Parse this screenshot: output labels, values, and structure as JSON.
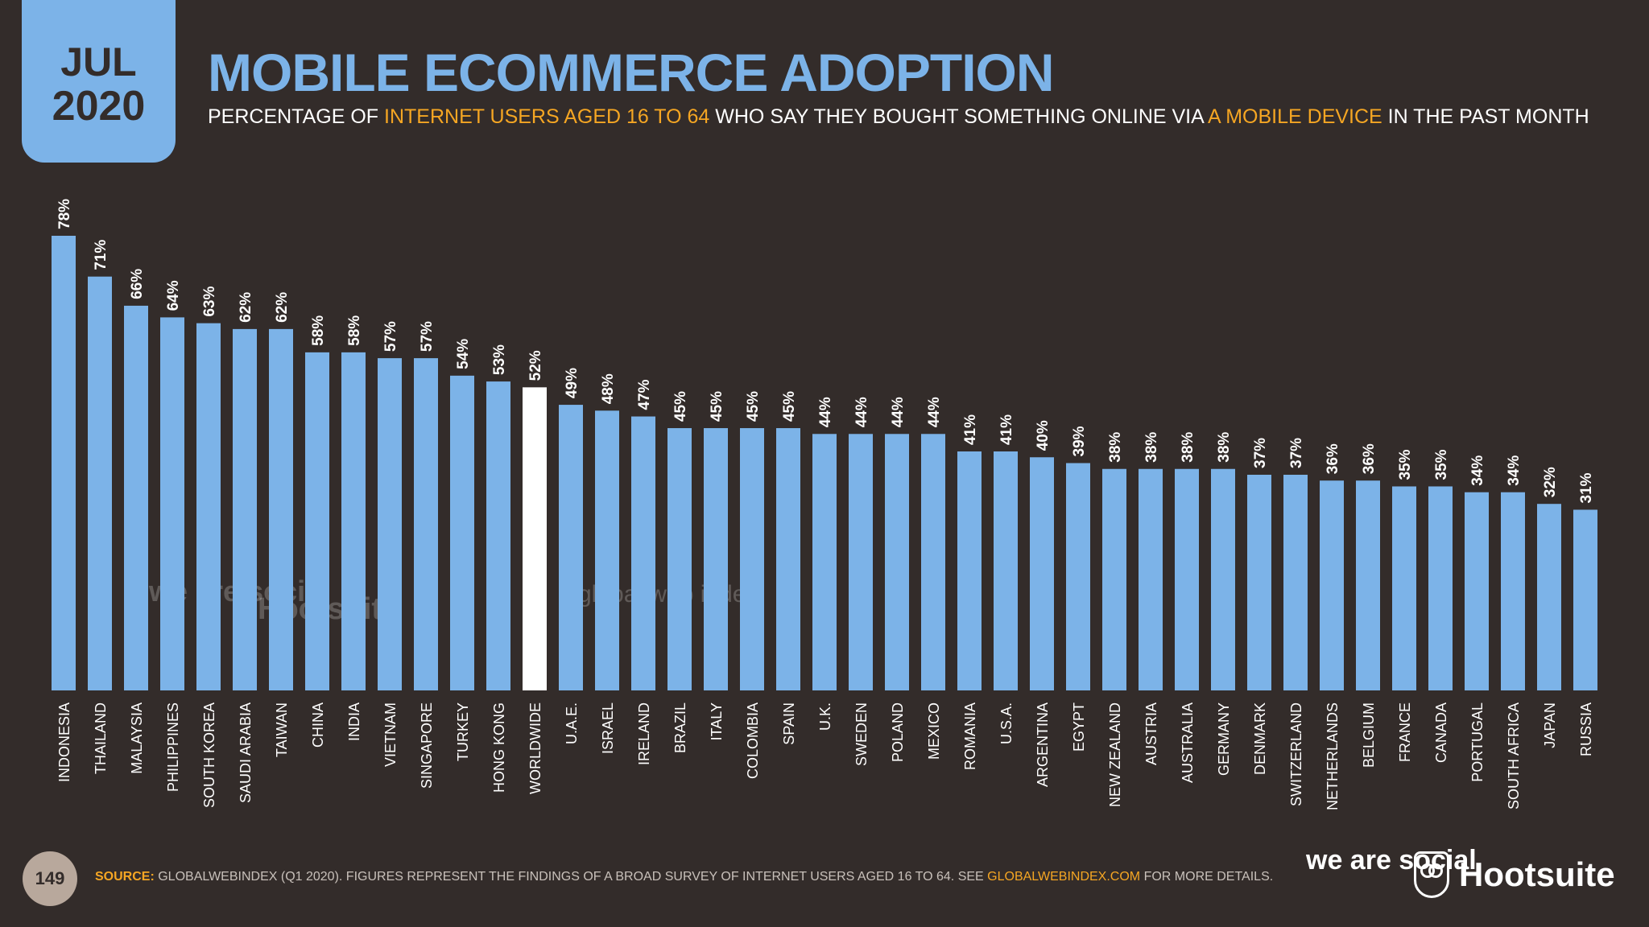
{
  "header": {
    "month": "JUL",
    "year": "2020",
    "title": "MOBILE ECOMMERCE ADOPTION",
    "subtitle_part1": "PERCENTAGE OF ",
    "subtitle_hl1": "INTERNET USERS AGED 16 TO 64",
    "subtitle_part2": " WHO SAY THEY BOUGHT SOMETHING ONLINE VIA ",
    "subtitle_hl2": "A MOBILE DEVICE",
    "subtitle_part3": " IN THE PAST MONTH"
  },
  "chart_data": {
    "type": "bar",
    "title": "MOBILE ECOMMERCE ADOPTION",
    "categories": [
      "INDONESIA",
      "THAILAND",
      "MALAYSIA",
      "PHILIPPINES",
      "SOUTH KOREA",
      "SAUDI ARABIA",
      "TAIWAN",
      "CHINA",
      "INDIA",
      "VIETNAM",
      "SINGAPORE",
      "TURKEY",
      "HONG KONG",
      "WORLDWIDE",
      "U.A.E.",
      "ISRAEL",
      "IRELAND",
      "BRAZIL",
      "ITALY",
      "COLOMBIA",
      "SPAIN",
      "U.K.",
      "SWEDEN",
      "POLAND",
      "MEXICO",
      "ROMANIA",
      "U.S.A.",
      "ARGENTINA",
      "EGYPT",
      "NEW ZEALAND",
      "AUSTRIA",
      "AUSTRALIA",
      "GERMANY",
      "DENMARK",
      "SWITZERLAND",
      "NETHERLANDS",
      "BELGIUM",
      "FRANCE",
      "CANADA",
      "PORTUGAL",
      "SOUTH AFRICA",
      "JAPAN",
      "RUSSIA"
    ],
    "values": [
      78,
      71,
      66,
      64,
      63,
      62,
      62,
      58,
      58,
      57,
      57,
      54,
      53,
      52,
      49,
      48,
      47,
      45,
      45,
      45,
      45,
      44,
      44,
      44,
      44,
      41,
      41,
      40,
      39,
      38,
      38,
      38,
      38,
      37,
      37,
      36,
      36,
      35,
      35,
      34,
      34,
      32,
      31
    ],
    "value_labels": [
      "78%",
      "71%",
      "66%",
      "64%",
      "63%",
      "62%",
      "62%",
      "58%",
      "58%",
      "57%",
      "57%",
      "54%",
      "53%",
      "52%",
      "49%",
      "48%",
      "47%",
      "45%",
      "45%",
      "45%",
      "45%",
      "44%",
      "44%",
      "44%",
      "44%",
      "41%",
      "41%",
      "40%",
      "39%",
      "38%",
      "38%",
      "38%",
      "38%",
      "37%",
      "37%",
      "36%",
      "36%",
      "35%",
      "35%",
      "34%",
      "34%",
      "32%",
      "31%"
    ],
    "highlight_category": "WORLDWIDE",
    "ylim": [
      0,
      78
    ],
    "grid": false,
    "colors": {
      "bar": "#7cb3e8",
      "highlight": "#ffffff"
    }
  },
  "watermarks": {
    "we_are_social": "we are social",
    "hootsuite": "Hootsuite",
    "globalwebindex": "global web index"
  },
  "footer": {
    "page_number": "149",
    "source_label": "SOURCE:",
    "source_text": " GLOBALWEBINDEX (Q1 2020). FIGURES REPRESENT THE FINDINGS OF A BROAD SURVEY OF INTERNET USERS AGED 16 TO 64. SEE ",
    "source_link": "GLOBALWEBINDEX.COM",
    "source_tail": " FOR MORE DETAILS.",
    "logo_we_are_social": "we are social",
    "logo_hootsuite": "Hootsuite"
  }
}
